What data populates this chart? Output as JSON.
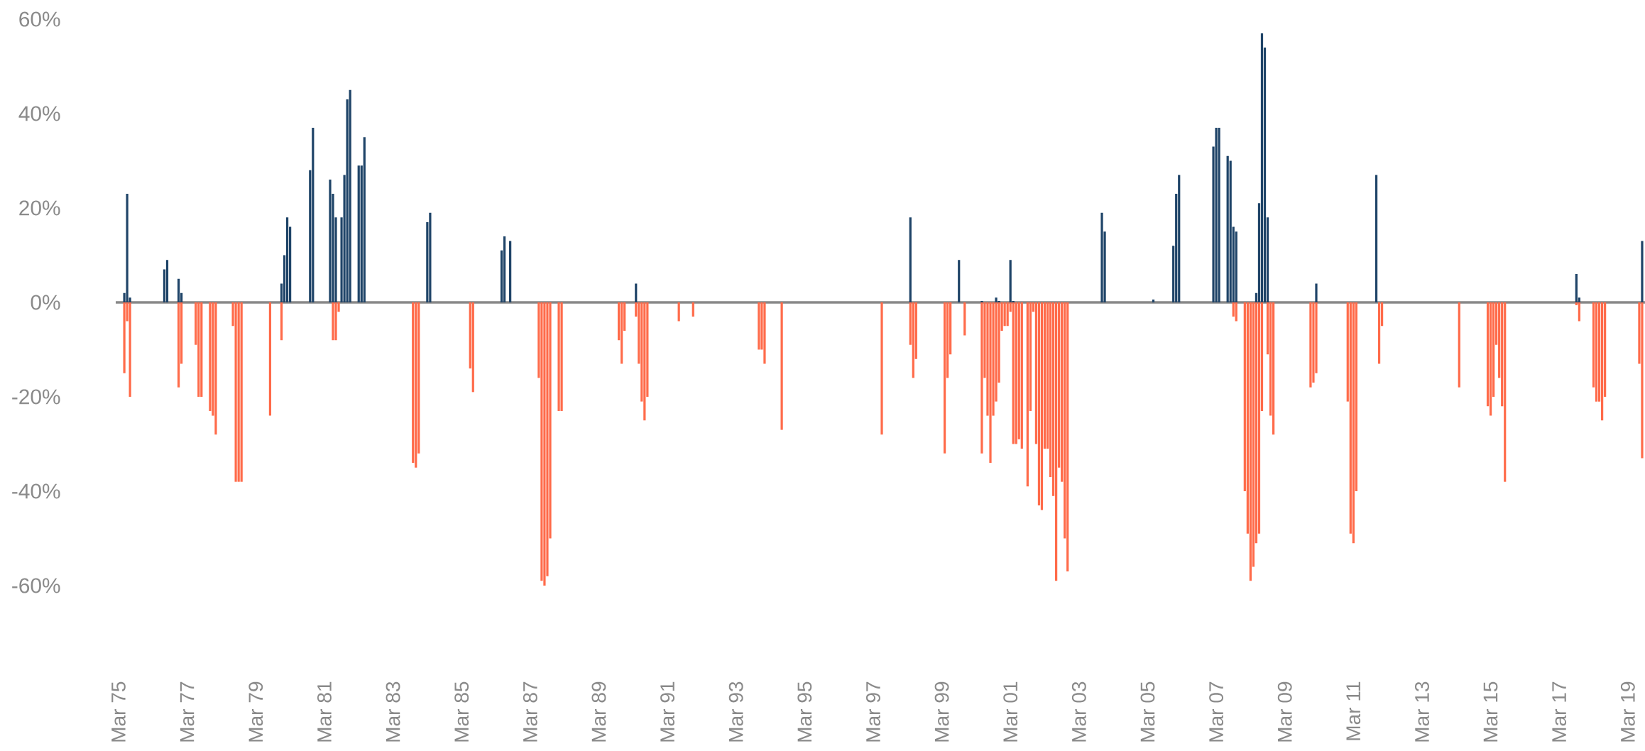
{
  "chart_data": {
    "type": "bar",
    "xlim": [
      "1975-02",
      "2019-09"
    ],
    "ylim": [
      -60,
      60
    ],
    "yticks": [
      {
        "value": -60,
        "label": "-60%"
      },
      {
        "value": -40,
        "label": "-40%"
      },
      {
        "value": -20,
        "label": "-20%"
      },
      {
        "value": 0,
        "label": "0%"
      },
      {
        "value": 20,
        "label": "20%"
      },
      {
        "value": 40,
        "label": "40%"
      },
      {
        "value": 60,
        "label": "60%"
      }
    ],
    "xticks": [
      {
        "value": "1975-03",
        "label": "Mar 75"
      },
      {
        "value": "1977-03",
        "label": "Mar 77"
      },
      {
        "value": "1979-03",
        "label": "Mar 79"
      },
      {
        "value": "1981-03",
        "label": "Mar 81"
      },
      {
        "value": "1983-03",
        "label": "Mar 83"
      },
      {
        "value": "1985-03",
        "label": "Mar 85"
      },
      {
        "value": "1987-03",
        "label": "Mar 87"
      },
      {
        "value": "1989-03",
        "label": "Mar 89"
      },
      {
        "value": "1991-03",
        "label": "Mar 91"
      },
      {
        "value": "1993-03",
        "label": "Mar 93"
      },
      {
        "value": "1995-03",
        "label": "Mar 95"
      },
      {
        "value": "1997-03",
        "label": "Mar 97"
      },
      {
        "value": "1999-03",
        "label": "Mar 99"
      },
      {
        "value": "2001-03",
        "label": "Mar 01"
      },
      {
        "value": "2003-03",
        "label": "Mar 03"
      },
      {
        "value": "2005-03",
        "label": "Mar 05"
      },
      {
        "value": "2007-03",
        "label": "Mar 07"
      },
      {
        "value": "2009-03",
        "label": "Mar 09"
      },
      {
        "value": "2011-03",
        "label": "Mar 11"
      },
      {
        "value": "2013-03",
        "label": "Mar 13"
      },
      {
        "value": "2015-03",
        "label": "Mar 15"
      },
      {
        "value": "2017-03",
        "label": "Mar 17"
      },
      {
        "value": "2019-03",
        "label": "Mar 19"
      }
    ],
    "series": [
      {
        "color": "#1f4468",
        "x": [
          "1975-05",
          "1975-06",
          "1975-07",
          "1976-07",
          "1976-08",
          "1976-12",
          "1977-01",
          "1979-12",
          "1980-01",
          "1980-02",
          "1980-03",
          "1980-10",
          "1980-11",
          "1981-05",
          "1981-06",
          "1981-07",
          "1981-09",
          "1981-10",
          "1981-11",
          "1981-12",
          "1982-03",
          "1982-04",
          "1982-05",
          "1984-03",
          "1984-04",
          "1986-05",
          "1986-06",
          "1986-08",
          "1990-04",
          "1998-04",
          "1999-09",
          "2000-05",
          "2000-10",
          "2000-11",
          "2001-03",
          "2001-04",
          "2003-11",
          "2003-12",
          "2005-05",
          "2005-12",
          "2006-01",
          "2006-02",
          "2007-02",
          "2007-03",
          "2007-04",
          "2007-07",
          "2007-08",
          "2007-09",
          "2007-10",
          "2008-05",
          "2008-06",
          "2008-07",
          "2008-08",
          "2008-09",
          "2010-02",
          "2011-11",
          "2017-09",
          "2017-10",
          "2019-08"
        ],
        "values": [
          2,
          23,
          1,
          7,
          9,
          5,
          2,
          4,
          10,
          18,
          16,
          28,
          37,
          26,
          23,
          18,
          18,
          27,
          43,
          45,
          29,
          29,
          35,
          17,
          19,
          11,
          14,
          13,
          4,
          18,
          9,
          0.3,
          1,
          0.3,
          9,
          0.3,
          19,
          15,
          0.6,
          12,
          23,
          27,
          33,
          37,
          37,
          31,
          30,
          16,
          15,
          2,
          21,
          57,
          54,
          18,
          4,
          27,
          6,
          1,
          13
        ]
      },
      {
        "color": "#ff6b4a",
        "x": [
          "1975-05",
          "1975-06",
          "1975-07",
          "1976-12",
          "1977-01",
          "1977-06",
          "1977-07",
          "1977-08",
          "1977-11",
          "1977-12",
          "1978-01",
          "1978-07",
          "1978-08",
          "1978-09",
          "1978-10",
          "1979-08",
          "1979-12",
          "1981-06",
          "1981-07",
          "1981-08",
          "1983-10",
          "1983-11",
          "1983-12",
          "1985-06",
          "1985-07",
          "1987-06",
          "1987-07",
          "1987-08",
          "1987-09",
          "1987-10",
          "1988-01",
          "1988-02",
          "1989-10",
          "1989-11",
          "1989-12",
          "1990-04",
          "1990-05",
          "1990-06",
          "1990-07",
          "1990-08",
          "1991-07",
          "1991-12",
          "1993-11",
          "1993-12",
          "1994-01",
          "1994-07",
          "1997-06",
          "1998-04",
          "1998-05",
          "1998-06",
          "1999-04",
          "1999-05",
          "1999-06",
          "1999-11",
          "2000-05",
          "2000-06",
          "2000-07",
          "2000-08",
          "2000-09",
          "2000-10",
          "2000-11",
          "2000-12",
          "2001-01",
          "2001-02",
          "2001-03",
          "2001-04",
          "2001-05",
          "2001-06",
          "2001-07",
          "2001-09",
          "2001-10",
          "2001-11",
          "2001-12",
          "2002-01",
          "2002-02",
          "2002-03",
          "2002-04",
          "2002-05",
          "2002-06",
          "2002-07",
          "2002-08",
          "2002-09",
          "2002-10",
          "2002-11",
          "2007-09",
          "2007-10",
          "2008-01",
          "2008-02",
          "2008-03",
          "2008-04",
          "2008-05",
          "2008-06",
          "2008-07",
          "2008-09",
          "2008-10",
          "2008-11",
          "2009-12",
          "2010-01",
          "2010-02",
          "2011-01",
          "2011-02",
          "2011-03",
          "2011-04",
          "2011-12",
          "2012-01",
          "2014-04",
          "2015-02",
          "2015-03",
          "2015-04",
          "2015-05",
          "2015-06",
          "2015-07",
          "2015-08",
          "2017-09",
          "2017-10",
          "2018-03",
          "2018-04",
          "2018-05",
          "2018-06",
          "2018-07",
          "2019-07",
          "2019-08"
        ],
        "values": [
          -15,
          -4,
          -20,
          -18,
          -13,
          -9,
          -20,
          -20,
          -23,
          -24,
          -28,
          -5,
          -38,
          -38,
          -38,
          -24,
          -8,
          -8,
          -8,
          -2,
          -34,
          -35,
          -32,
          -14,
          -19,
          -16,
          -59,
          -60,
          -58,
          -50,
          -23,
          -23,
          -8,
          -13,
          -6,
          -3,
          -13,
          -21,
          -25,
          -20,
          -4,
          -3,
          -10,
          -10,
          -13,
          -27,
          -28,
          -9,
          -16,
          -12,
          -32,
          -16,
          -11,
          -7,
          -32,
          -16,
          -24,
          -34,
          -24,
          -21,
          -17,
          -6,
          -5,
          -5,
          -2,
          -30,
          -30,
          -29,
          -31,
          -39,
          -23,
          -2,
          -30,
          -43,
          -44,
          -31,
          -31,
          -37,
          -41,
          -59,
          -35,
          -38,
          -50,
          -57,
          -3,
          -4,
          -40,
          -49,
          -59,
          -56,
          -51,
          -49,
          -23,
          -11,
          -24,
          -28,
          -18,
          -17,
          -15,
          -21,
          -49,
          -51,
          -40,
          -13,
          -5,
          -18,
          -22,
          -24,
          -20,
          -9,
          -16,
          -22,
          -38,
          -0.6,
          -4,
          -18,
          -21,
          -21,
          -25,
          -20,
          -13,
          -33
        ]
      }
    ]
  }
}
